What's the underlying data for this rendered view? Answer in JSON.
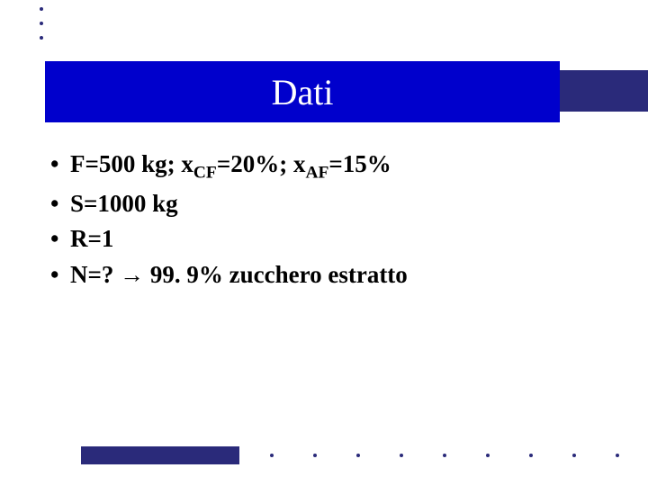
{
  "title": "Dati",
  "bullets": {
    "b1_pre": "F=500 kg; x",
    "b1_sub1": "CF",
    "b1_mid": "=20%; x",
    "b1_sub2": "AF",
    "b1_post": "=15%",
    "b2": "S=1000 kg",
    "b3": "R=1",
    "b4_pre": "N=? ",
    "b4_arrow": "→",
    "b4_post": " 99. 9% zucchero estratto"
  },
  "colors": {
    "title_bar": "#0000cc",
    "accent": "#2a2a7a",
    "text": "#000000",
    "title_text": "#ffffff",
    "background": "#ffffff"
  },
  "typography": {
    "title_fontsize": 40,
    "body_fontsize": 27,
    "body_weight": "bold",
    "family": "Times New Roman"
  },
  "layout": {
    "slide_width": 720,
    "slide_height": 540
  }
}
